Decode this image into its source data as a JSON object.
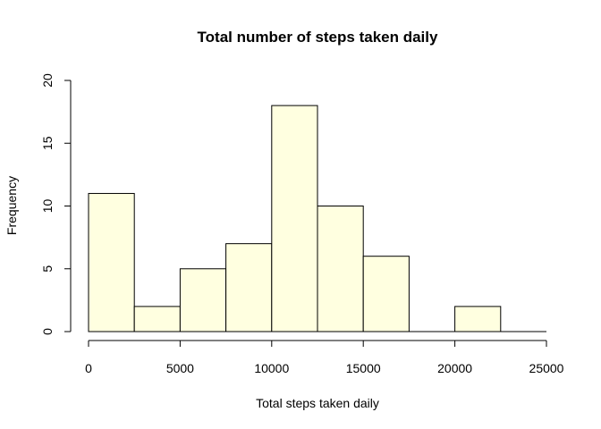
{
  "chart_data": {
    "type": "bar",
    "title": "Total number of steps taken daily",
    "xlabel": "Total steps taken daily",
    "ylabel": "Frequency",
    "bins": [
      {
        "x0": 0,
        "x1": 2500,
        "count": 11
      },
      {
        "x0": 2500,
        "x1": 5000,
        "count": 2
      },
      {
        "x0": 5000,
        "x1": 7500,
        "count": 5
      },
      {
        "x0": 7500,
        "x1": 10000,
        "count": 7
      },
      {
        "x0": 10000,
        "x1": 12500,
        "count": 18
      },
      {
        "x0": 12500,
        "x1": 15000,
        "count": 10
      },
      {
        "x0": 15000,
        "x1": 17500,
        "count": 6
      },
      {
        "x0": 17500,
        "x1": 20000,
        "count": 0
      },
      {
        "x0": 20000,
        "x1": 22500,
        "count": 2
      },
      {
        "x0": 22500,
        "x1": 25000,
        "count": 0
      }
    ],
    "xlim": [
      0,
      25000
    ],
    "ylim": [
      0,
      20
    ],
    "xticks": [
      0,
      5000,
      10000,
      15000,
      20000,
      25000
    ],
    "yticks": [
      0,
      5,
      10,
      15,
      20
    ],
    "bar_color": "#ffffe0",
    "grid": false
  }
}
